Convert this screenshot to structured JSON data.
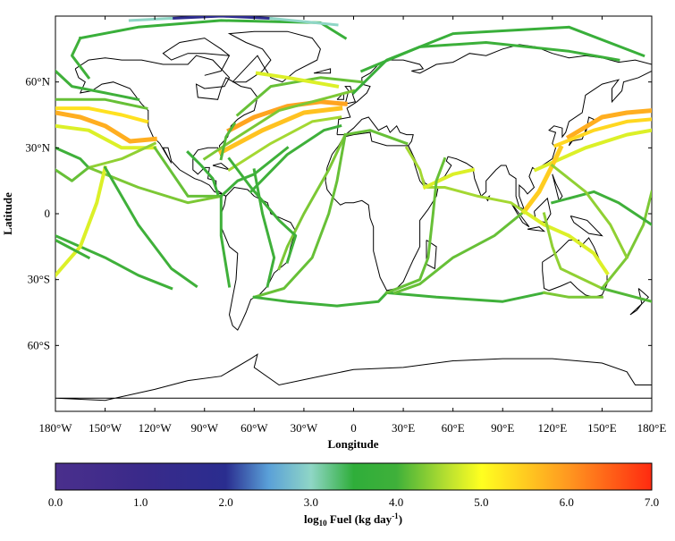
{
  "map": {
    "y_axis_label": "Latitude",
    "x_axis_label": "Longitude",
    "lat_ticks": [
      {
        "value": 60,
        "label": "60°N"
      },
      {
        "value": 30,
        "label": "30°N"
      },
      {
        "value": 0,
        "label": "0"
      },
      {
        "value": -30,
        "label": "30°S"
      },
      {
        "value": -60,
        "label": "60°S"
      }
    ],
    "lon_ticks": [
      {
        "value": -180,
        "label": "180°W"
      },
      {
        "value": -150,
        "label": "150°W"
      },
      {
        "value": -120,
        "label": "120°W"
      },
      {
        "value": -90,
        "label": "90°W"
      },
      {
        "value": -60,
        "label": "60°W"
      },
      {
        "value": -30,
        "label": "30°W"
      },
      {
        "value": 0,
        "label": "0"
      },
      {
        "value": 30,
        "label": "30°E"
      },
      {
        "value": 60,
        "label": "60°E"
      },
      {
        "value": 90,
        "label": "90°E"
      },
      {
        "value": 120,
        "label": "120°E"
      },
      {
        "value": 150,
        "label": "150°E"
      },
      {
        "value": 180,
        "label": "180°E"
      }
    ],
    "lon_range": [
      -180,
      180
    ],
    "lat_range": [
      -90,
      90
    ]
  },
  "colorbar": {
    "label_prefix": "log",
    "label_sub": "10",
    "label_mid": " Fuel (kg day",
    "label_sup": "-1",
    "label_end": ")",
    "range": [
      0.0,
      7.0
    ],
    "ticks": [
      "0.0",
      "1.0",
      "2.0",
      "3.0",
      "4.0",
      "5.0",
      "6.0",
      "7.0"
    ],
    "stops": [
      {
        "value": 0.0,
        "color": "#4a2f8c"
      },
      {
        "value": 1.0,
        "color": "#3a2a8a"
      },
      {
        "value": 2.0,
        "color": "#2a2d8f"
      },
      {
        "value": 2.5,
        "color": "#5aa0d8"
      },
      {
        "value": 3.0,
        "color": "#8fd6c6"
      },
      {
        "value": 3.5,
        "color": "#2fae3a"
      },
      {
        "value": 4.0,
        "color": "#3fb03a"
      },
      {
        "value": 4.6,
        "color": "#b8e030"
      },
      {
        "value": 5.0,
        "color": "#ffff20"
      },
      {
        "value": 6.0,
        "color": "#ff9a20"
      },
      {
        "value": 7.0,
        "color": "#ff2a10"
      }
    ]
  },
  "routes": [
    {
      "v": 5.9,
      "pts": [
        [
          -75,
          38
        ],
        [
          -60,
          44
        ],
        [
          -40,
          49
        ],
        [
          -20,
          51
        ],
        [
          -5,
          50
        ]
      ]
    },
    {
      "v": 5.6,
      "pts": [
        [
          -80,
          28
        ],
        [
          -55,
          38
        ],
        [
          -30,
          46
        ],
        [
          -8,
          48
        ]
      ]
    },
    {
      "v": 4.5,
      "pts": [
        [
          -75,
          20
        ],
        [
          -50,
          32
        ],
        [
          -25,
          42
        ],
        [
          -8,
          44
        ]
      ]
    },
    {
      "v": 4.0,
      "pts": [
        [
          -62,
          10
        ],
        [
          -40,
          27
        ],
        [
          -18,
          38
        ],
        [
          -8,
          40
        ]
      ]
    },
    {
      "v": 4.3,
      "pts": [
        [
          -90,
          25
        ],
        [
          -70,
          35
        ],
        [
          -45,
          47
        ],
        [
          -15,
          53
        ],
        [
          0,
          56
        ]
      ]
    },
    {
      "v": 4.2,
      "pts": [
        [
          -70,
          45
        ],
        [
          -50,
          58
        ],
        [
          -20,
          62
        ],
        [
          5,
          60
        ]
      ]
    },
    {
      "v": 4.8,
      "pts": [
        [
          -58,
          64
        ],
        [
          -40,
          62
        ],
        [
          -25,
          60
        ],
        [
          -10,
          58
        ]
      ]
    },
    {
      "v": 3.8,
      "pts": [
        [
          -165,
          80
        ],
        [
          -130,
          85
        ],
        [
          -80,
          88
        ],
        [
          -20,
          87
        ],
        [
          -5,
          80
        ]
      ]
    },
    {
      "v": 1.8,
      "pts": [
        [
          -110,
          89
        ],
        [
          -80,
          90
        ],
        [
          -50,
          89
        ]
      ]
    },
    {
      "v": 3.0,
      "pts": [
        [
          -135,
          88
        ],
        [
          -110,
          89
        ]
      ]
    },
    {
      "v": 3.0,
      "pts": [
        [
          -50,
          89
        ],
        [
          -10,
          86
        ]
      ]
    },
    {
      "v": 4.0,
      "pts": [
        [
          -160,
          62
        ],
        [
          -170,
          72
        ],
        [
          -165,
          80
        ]
      ]
    },
    {
      "v": 3.9,
      "pts": [
        [
          5,
          65
        ],
        [
          40,
          76
        ],
        [
          80,
          78
        ],
        [
          130,
          74
        ],
        [
          160,
          70
        ]
      ]
    },
    {
      "v": 3.8,
      "pts": [
        [
          0,
          55
        ],
        [
          20,
          70
        ],
        [
          60,
          82
        ],
        [
          130,
          85
        ],
        [
          175,
          72
        ]
      ]
    },
    {
      "v": 5.3,
      "pts": [
        [
          -180,
          48
        ],
        [
          -160,
          48
        ],
        [
          -140,
          45
        ],
        [
          -125,
          42
        ]
      ]
    },
    {
      "v": 5.8,
      "pts": [
        [
          -180,
          46
        ],
        [
          -165,
          44
        ],
        [
          -150,
          40
        ],
        [
          -135,
          33
        ],
        [
          -120,
          34
        ]
      ]
    },
    {
      "v": 4.8,
      "pts": [
        [
          -180,
          40
        ],
        [
          -160,
          38
        ],
        [
          -140,
          30
        ],
        [
          -120,
          30
        ]
      ]
    },
    {
      "v": 4.2,
      "pts": [
        [
          -180,
          52
        ],
        [
          -150,
          52
        ],
        [
          -125,
          48
        ]
      ]
    },
    {
      "v": 5.8,
      "pts": [
        [
          130,
          35
        ],
        [
          150,
          44
        ],
        [
          165,
          46
        ],
        [
          180,
          47
        ]
      ]
    },
    {
      "v": 5.4,
      "pts": [
        [
          122,
          31
        ],
        [
          145,
          38
        ],
        [
          165,
          42
        ],
        [
          180,
          43
        ]
      ]
    },
    {
      "v": 4.8,
      "pts": [
        [
          110,
          20
        ],
        [
          140,
          30
        ],
        [
          165,
          36
        ],
        [
          180,
          38
        ]
      ]
    },
    {
      "v": 4.4,
      "pts": [
        [
          -160,
          21
        ],
        [
          -140,
          25
        ],
        [
          -120,
          32
        ]
      ]
    },
    {
      "v": 4.3,
      "pts": [
        [
          -160,
          21
        ],
        [
          -130,
          12
        ],
        [
          -100,
          5
        ],
        [
          -80,
          8
        ]
      ]
    },
    {
      "v": 4.0,
      "pts": [
        [
          -180,
          30
        ],
        [
          -165,
          25
        ],
        [
          -160,
          21
        ]
      ]
    },
    {
      "v": 4.0,
      "pts": [
        [
          -180,
          -10
        ],
        [
          -150,
          -20
        ],
        [
          -130,
          -28
        ],
        [
          -110,
          -34
        ]
      ]
    },
    {
      "v": 4.8,
      "pts": [
        [
          -180,
          -28
        ],
        [
          -165,
          -15
        ],
        [
          -155,
          5
        ],
        [
          -150,
          21
        ]
      ]
    },
    {
      "v": 4.0,
      "pts": [
        [
          -180,
          -12
        ],
        [
          -160,
          -20
        ]
      ]
    },
    {
      "v": 4.0,
      "pts": [
        [
          -150,
          21
        ],
        [
          -130,
          -5
        ],
        [
          -110,
          -25
        ],
        [
          -95,
          -33
        ]
      ]
    },
    {
      "v": 4.2,
      "pts": [
        [
          -120,
          30
        ],
        [
          -100,
          8
        ],
        [
          -80,
          8
        ]
      ]
    },
    {
      "v": 4.0,
      "pts": [
        [
          -80,
          8
        ],
        [
          -80,
          -10
        ],
        [
          -75,
          -33
        ]
      ]
    },
    {
      "v": 4.0,
      "pts": [
        [
          -80,
          8
        ],
        [
          -70,
          15
        ],
        [
          -60,
          18
        ],
        [
          -40,
          30
        ]
      ]
    },
    {
      "v": 4.3,
      "pts": [
        [
          -5,
          36
        ],
        [
          -15,
          20
        ],
        [
          -30,
          0
        ],
        [
          -40,
          -15
        ],
        [
          -45,
          -25
        ]
      ]
    },
    {
      "v": 4.2,
      "pts": [
        [
          -5,
          36
        ],
        [
          -10,
          15
        ],
        [
          -15,
          0
        ],
        [
          -25,
          -20
        ],
        [
          -42,
          -34
        ],
        [
          -60,
          -38
        ]
      ]
    },
    {
      "v": 4.0,
      "pts": [
        [
          -60,
          -38
        ],
        [
          -40,
          -40
        ],
        [
          -10,
          -42
        ],
        [
          15,
          -40
        ],
        [
          20,
          -36
        ]
      ]
    },
    {
      "v": 4.0,
      "pts": [
        [
          20,
          -36
        ],
        [
          50,
          -38
        ],
        [
          90,
          -40
        ],
        [
          115,
          -36
        ]
      ]
    },
    {
      "v": 4.2,
      "pts": [
        [
          -5,
          36
        ],
        [
          10,
          38
        ],
        [
          32,
          32
        ]
      ]
    },
    {
      "v": 4.5,
      "pts": [
        [
          32,
          30
        ],
        [
          40,
          20
        ],
        [
          43,
          12
        ],
        [
          55,
          12
        ],
        [
          75,
          8
        ],
        [
          95,
          5
        ],
        [
          103,
          1
        ]
      ]
    },
    {
      "v": 4.8,
      "pts": [
        [
          43,
          12
        ],
        [
          60,
          18
        ],
        [
          72,
          20
        ]
      ]
    },
    {
      "v": 4.2,
      "pts": [
        [
          55,
          25
        ],
        [
          50,
          15
        ],
        [
          48,
          0
        ],
        [
          45,
          -20
        ],
        [
          40,
          -30
        ],
        [
          20,
          -36
        ]
      ]
    },
    {
      "v": 4.2,
      "pts": [
        [
          103,
          1
        ],
        [
          85,
          -10
        ],
        [
          60,
          -20
        ],
        [
          40,
          -32
        ],
        [
          25,
          -36
        ]
      ]
    },
    {
      "v": 5.5,
      "pts": [
        [
          103,
          1
        ],
        [
          112,
          10
        ],
        [
          120,
          22
        ],
        [
          125,
          30
        ]
      ]
    },
    {
      "v": 4.8,
      "pts": [
        [
          103,
          1
        ],
        [
          115,
          -5
        ],
        [
          130,
          -10
        ],
        [
          145,
          -18
        ],
        [
          153,
          -27
        ]
      ]
    },
    {
      "v": 4.4,
      "pts": [
        [
          115,
          0
        ],
        [
          120,
          -15
        ],
        [
          125,
          -25
        ],
        [
          150,
          -34
        ]
      ]
    },
    {
      "v": 4.3,
      "pts": [
        [
          115,
          -36
        ],
        [
          130,
          -38
        ],
        [
          150,
          -38
        ]
      ]
    },
    {
      "v": 4.3,
      "pts": [
        [
          150,
          -34
        ],
        [
          165,
          -20
        ],
        [
          175,
          -5
        ],
        [
          180,
          10
        ]
      ]
    },
    {
      "v": 4.1,
      "pts": [
        [
          150,
          -34
        ],
        [
          170,
          -38
        ],
        [
          180,
          -40
        ]
      ]
    },
    {
      "v": 4.0,
      "pts": [
        [
          120,
          5
        ],
        [
          145,
          10
        ],
        [
          160,
          5
        ],
        [
          180,
          -5
        ]
      ]
    },
    {
      "v": 4.4,
      "pts": [
        [
          120,
          22
        ],
        [
          140,
          10
        ],
        [
          155,
          -5
        ],
        [
          165,
          -20
        ]
      ]
    },
    {
      "v": 4.2,
      "pts": [
        [
          -180,
          20
        ],
        [
          -170,
          15
        ],
        [
          -160,
          21
        ]
      ]
    },
    {
      "v": 3.9,
      "pts": [
        [
          -100,
          28
        ],
        [
          -92,
          22
        ],
        [
          -85,
          16
        ],
        [
          -82,
          9
        ]
      ]
    },
    {
      "v": 4.0,
      "pts": [
        [
          -75,
          25
        ],
        [
          -62,
          12
        ],
        [
          -45,
          -3
        ],
        [
          -35,
          -10
        ],
        [
          -40,
          -22
        ]
      ]
    },
    {
      "v": 4.0,
      "pts": [
        [
          -60,
          20
        ],
        [
          -55,
          0
        ],
        [
          -48,
          -20
        ],
        [
          -52,
          -33
        ]
      ]
    },
    {
      "v": 4.1,
      "pts": [
        [
          -80,
          25
        ],
        [
          -77,
          35
        ],
        [
          -72,
          41
        ]
      ]
    },
    {
      "v": 4.0,
      "pts": [
        [
          -180,
          65
        ],
        [
          -170,
          58
        ],
        [
          -150,
          55
        ],
        [
          -130,
          52
        ]
      ]
    }
  ],
  "colors": {
    "coast": "#000000",
    "frame": "#000000",
    "background": "#ffffff"
  }
}
